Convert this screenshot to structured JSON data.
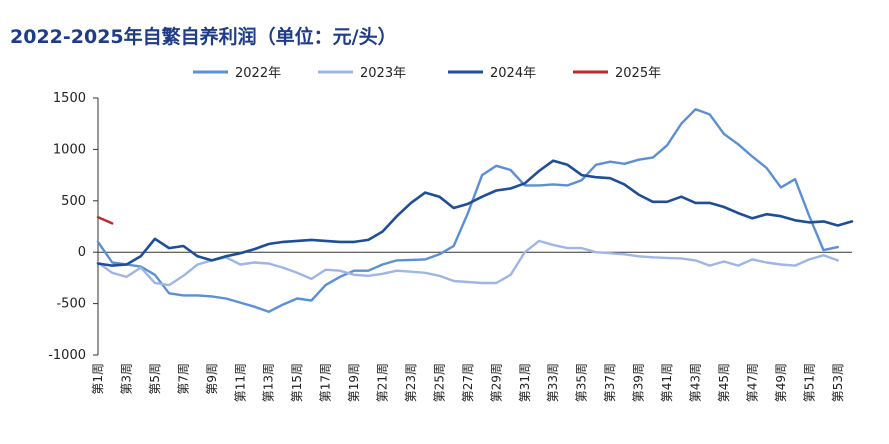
{
  "title": "2022-2025年自繁自养利润（单位：元/头）",
  "chart_data": {
    "type": "line",
    "title": "2022-2025年自繁自养利润（单位：元/头）",
    "xlabel": "",
    "ylabel": "",
    "ylim": [
      -1000,
      1500
    ],
    "yticks": [
      -1000,
      -500,
      0,
      500,
      1000,
      1500
    ],
    "x_tick_labels": [
      "第1周",
      "第3周",
      "第5周",
      "第7周",
      "第9周",
      "第11周",
      "第13周",
      "第15周",
      "第17周",
      "第19周",
      "第21周",
      "第23周",
      "第25周",
      "第27周",
      "第29周",
      "第31周",
      "第33周",
      "第35周",
      "第37周",
      "第39周",
      "第41周",
      "第43周",
      "第45周",
      "第47周",
      "第49周",
      "第51周",
      "第53周"
    ],
    "legend_position": "top",
    "series": [
      {
        "name": "2022年",
        "color": "#5b8fd6",
        "values": [
          100,
          -100,
          -120,
          -140,
          -220,
          -400,
          -420,
          -420,
          -430,
          -450,
          -490,
          -530,
          -580,
          -510,
          -450,
          -470,
          -320,
          -240,
          -180,
          -180,
          -120,
          -80,
          -75,
          -70,
          -20,
          60,
          380,
          750,
          840,
          800,
          650,
          650,
          660,
          650,
          700,
          850,
          880,
          860,
          900,
          920,
          1040,
          1250,
          1390,
          1340,
          1150,
          1050,
          930,
          820,
          630,
          710,
          350,
          20,
          50
        ]
      },
      {
        "name": "2023年",
        "color": "#9fb5e6",
        "values": [
          -100,
          -200,
          -240,
          -150,
          -300,
          -320,
          -230,
          -120,
          -80,
          -50,
          -120,
          -100,
          -110,
          -150,
          -200,
          -260,
          -170,
          -180,
          -220,
          -230,
          -210,
          -180,
          -190,
          -200,
          -230,
          -280,
          -290,
          -300,
          -300,
          -220,
          0,
          110,
          70,
          40,
          40,
          0,
          -10,
          -20,
          -40,
          -50,
          -55,
          -60,
          -80,
          -130,
          -90,
          -130,
          -70,
          -100,
          -120,
          -130,
          -70,
          -30,
          -80
        ]
      },
      {
        "name": "2024年",
        "color": "#1f4e99",
        "values": [
          -110,
          -130,
          -120,
          -40,
          130,
          40,
          60,
          -40,
          -80,
          -40,
          -10,
          30,
          80,
          100,
          110,
          120,
          110,
          100,
          100,
          120,
          200,
          350,
          480,
          580,
          540,
          430,
          470,
          540,
          600,
          620,
          670,
          790,
          890,
          850,
          750,
          730,
          720,
          660,
          560,
          490,
          490,
          540,
          480,
          480,
          440,
          380,
          330,
          370,
          350,
          310,
          290,
          300,
          260,
          300
        ]
      },
      {
        "name": "2025年",
        "color": "#c0282d",
        "values": [
          340,
          280
        ]
      }
    ]
  }
}
